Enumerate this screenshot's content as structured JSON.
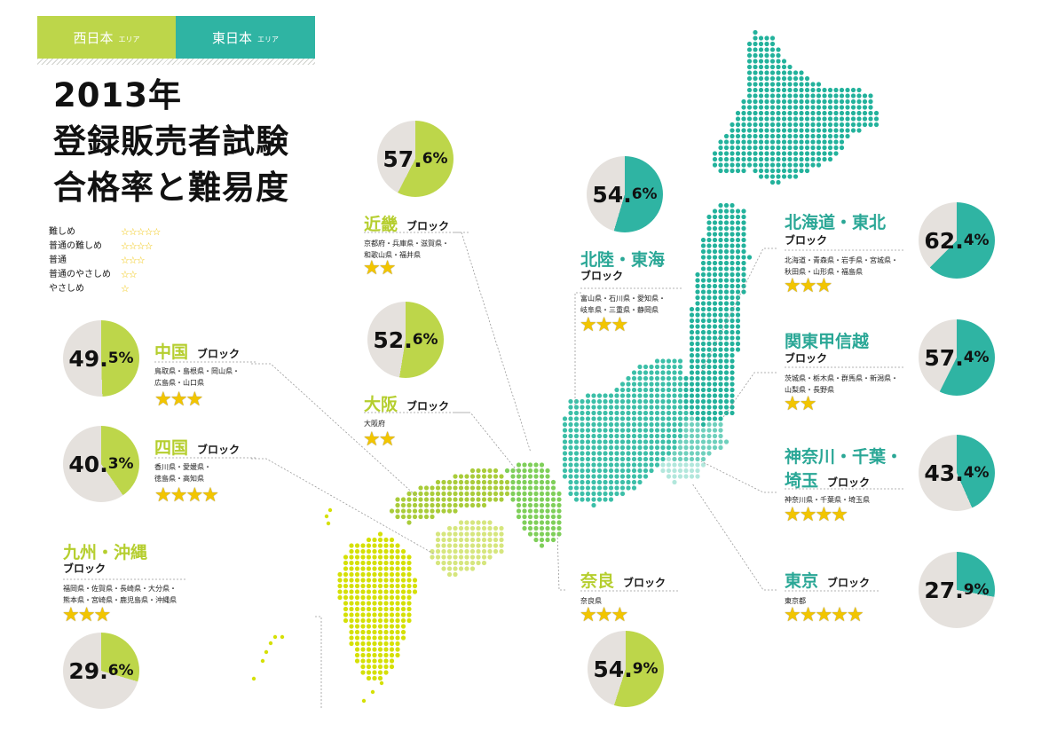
{
  "tabs": {
    "west": "西日本",
    "east": "東日本",
    "suffix": "エリア"
  },
  "title": {
    "line1": "2013年",
    "line2": "登録販売者試験",
    "line3": "合格率と難易度"
  },
  "legend": [
    {
      "label": "難しめ",
      "stars": "☆☆☆☆☆"
    },
    {
      "label": "普通の難しめ",
      "stars": "☆☆☆☆"
    },
    {
      "label": "普通",
      "stars": "☆☆☆"
    },
    {
      "label": "普通のやさしめ",
      "stars": "☆☆"
    },
    {
      "label": "やさしめ",
      "stars": "☆"
    }
  ],
  "block_word": "ブロック",
  "colors": {
    "west": "#bdd64a",
    "east": "#2fb4a3",
    "pie_bg": "#e5e1dd",
    "star": "#f2c500"
  },
  "regions": {
    "kinki": {
      "name": "近畿",
      "prefs1": "京都府・兵庫県・滋賀県・",
      "prefs2": "和歌山県・福井県",
      "stars": "★★",
      "rate_int": "57.",
      "rate_dec": "6%",
      "rate": 57.6
    },
    "osaka": {
      "name": "大阪",
      "prefs1": "大阪府",
      "stars": "★★",
      "rate_int": "52.",
      "rate_dec": "6%",
      "rate": 52.6
    },
    "chugoku": {
      "name": "中国",
      "prefs1": "鳥取県・島根県・岡山県・",
      "prefs2": "広島県・山口県",
      "stars": "★★★",
      "rate_int": "49.",
      "rate_dec": "5%",
      "rate": 49.5
    },
    "shikoku": {
      "name": "四国",
      "prefs1": "香川県・愛媛県・",
      "prefs2": "徳島県・高知県",
      "stars": "★★★★",
      "rate_int": "40.",
      "rate_dec": "3%",
      "rate": 40.3
    },
    "kyushu": {
      "name": "九州・沖縄",
      "prefs1": "福岡県・佐賀県・長崎県・大分県・",
      "prefs2": "熊本県・宮崎県・鹿児島県・沖縄県",
      "stars": "★★★",
      "rate_int": "29.",
      "rate_dec": "6%",
      "rate": 29.6
    },
    "nara": {
      "name": "奈良",
      "prefs1": "奈良県",
      "stars": "★★★",
      "rate_int": "54.",
      "rate_dec": "9%",
      "rate": 54.9
    },
    "hokuriku": {
      "name": "北陸・東海",
      "prefs1": "富山県・石川県・愛知県・",
      "prefs2": "岐阜県・三重県・静岡県",
      "stars": "★★★",
      "rate_int": "54.",
      "rate_dec": "6%",
      "rate": 54.6
    },
    "hokkaido": {
      "name": "北海道・東北",
      "prefs1": "北海道・青森県・岩手県・宮城県・",
      "prefs2": "秋田県・山形県・福島県",
      "stars": "★★★",
      "rate_int": "62.",
      "rate_dec": "4%",
      "rate": 62.4
    },
    "kanto": {
      "name": "関東甲信越",
      "prefs1": "茨城県・栃木県・群馬県・新潟県・",
      "prefs2": "山梨県・長野県",
      "stars": "★★",
      "rate_int": "57.",
      "rate_dec": "4%",
      "rate": 57.4
    },
    "kanagawa": {
      "name1": "神奈川・千葉・",
      "name2": "埼玉",
      "prefs1": "神奈川県・千葉県・埼玉県",
      "stars": "★★★★",
      "rate_int": "43.",
      "rate_dec": "4%",
      "rate": 43.4
    },
    "tokyo": {
      "name": "東京",
      "prefs1": "東京都",
      "stars": "★★★★★",
      "rate_int": "27.",
      "rate_dec": "9%",
      "rate": 27.9
    }
  }
}
